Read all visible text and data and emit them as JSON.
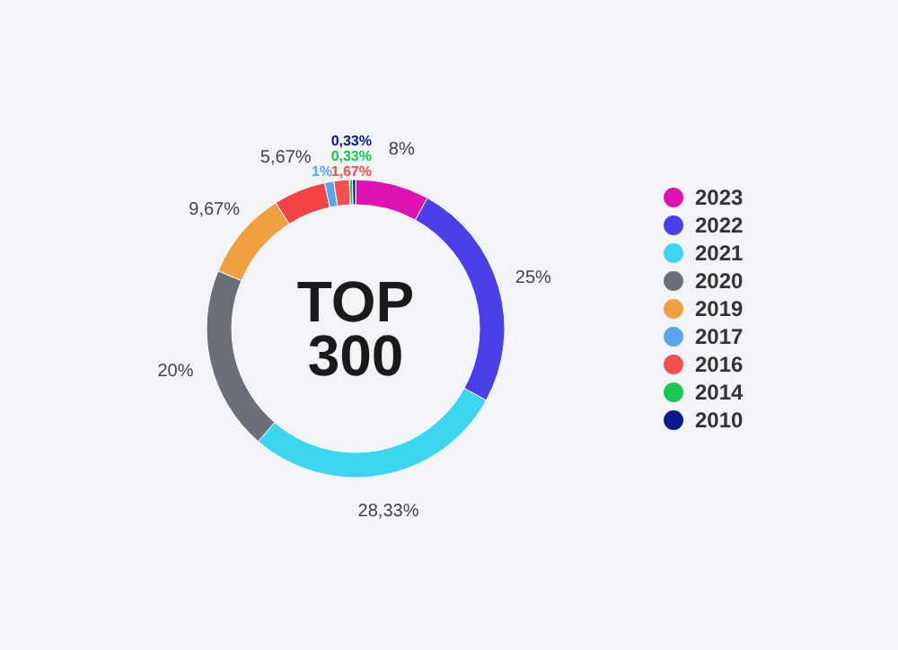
{
  "chart_data": {
    "type": "donut",
    "annotations": [
      "TOP",
      "300"
    ],
    "categories": [
      "2023",
      "2022",
      "2021",
      "2020",
      "2019",
      null,
      "2017",
      "2016",
      "2014",
      "2010"
    ],
    "values": [
      8,
      25,
      28.33,
      20,
      9.67,
      5.67,
      1,
      1.67,
      0.33,
      0.33
    ],
    "value_labels": [
      "8%",
      "25%",
      "28,33%",
      "20%",
      "9,67%",
      "5,67%",
      "1%",
      "1,67%",
      "0,33%",
      "0,33%"
    ],
    "colors": [
      "#e012b4",
      "#4a3fe8",
      "#3dd6f0",
      "#6c6e78",
      "#f0a040",
      "#f24444",
      "#5aa6ee",
      "#f05050",
      "#18c850",
      "#0a1a8c"
    ],
    "legend": "right"
  }
}
